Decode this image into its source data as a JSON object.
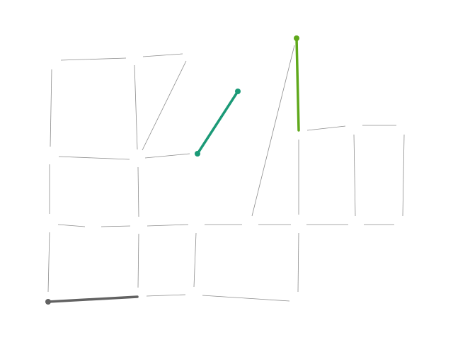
{
  "diagram": {
    "type": "graph-routes",
    "background": "#ffffff",
    "edge_color": "#8c8c8c",
    "routes": [
      {
        "name": "gray-route",
        "color": "#626262"
      },
      {
        "name": "teal-route",
        "color": "#1b9a77"
      },
      {
        "name": "green-route",
        "color": "#5fa81b"
      }
    ]
  }
}
